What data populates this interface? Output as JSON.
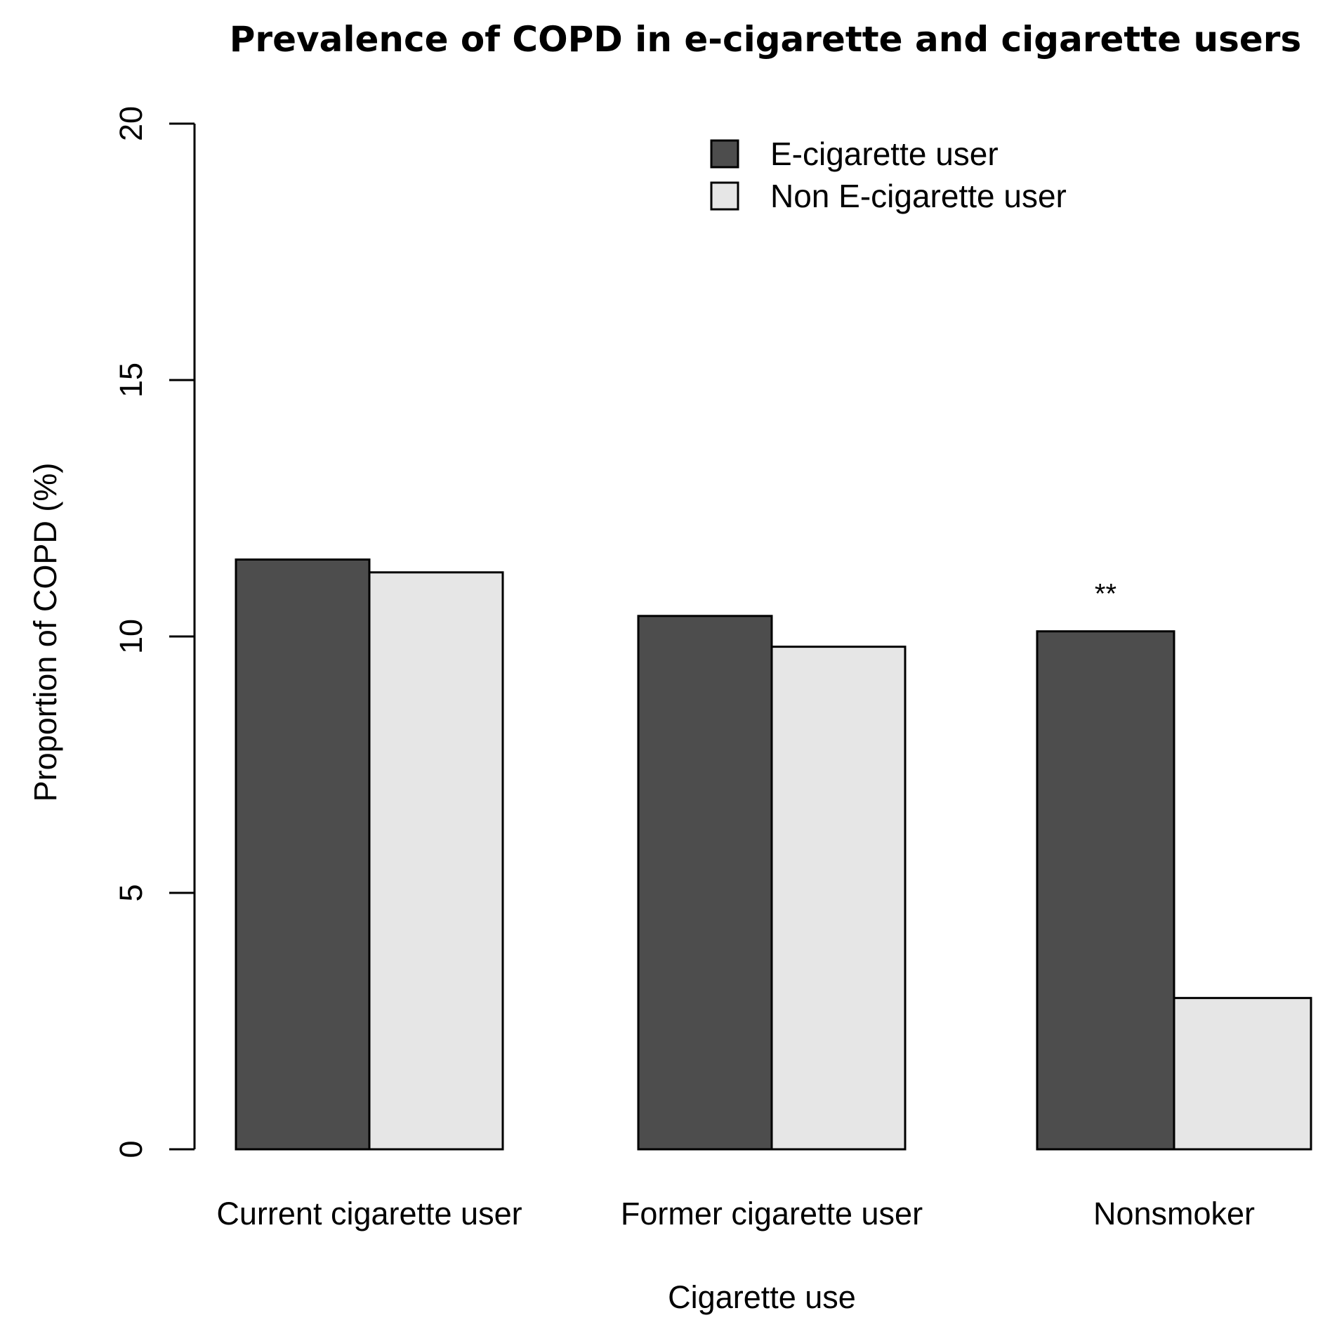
{
  "chart_data": {
    "type": "bar",
    "title": "Prevalence of COPD in e-cigarette and cigarette users",
    "xlabel": "Cigarette use",
    "ylabel": "Proportion of COPD (%)",
    "ylim": [
      0,
      20
    ],
    "yticks": [
      0,
      5,
      10,
      15,
      20
    ],
    "yticks_labels": [
      "0",
      "5",
      "10",
      "15",
      "20"
    ],
    "categories": [
      "Current cigarette user",
      "Former cigarette user",
      "Nonsmoker"
    ],
    "series": [
      {
        "name": "E-cigarette user",
        "color": "#4d4d4d",
        "values": [
          11.5,
          10.4,
          10.1
        ]
      },
      {
        "name": "Non E-cigarette user",
        "color": "#e6e6e6",
        "values": [
          11.25,
          9.8,
          2.95
        ]
      }
    ],
    "annotations": [
      {
        "text": "**",
        "category": "Nonsmoker",
        "series": "E-cigarette user"
      }
    ],
    "legend": {
      "position": "top-right",
      "entries": [
        "E-cigarette user",
        "Non E-cigarette user"
      ]
    },
    "grid": false
  }
}
